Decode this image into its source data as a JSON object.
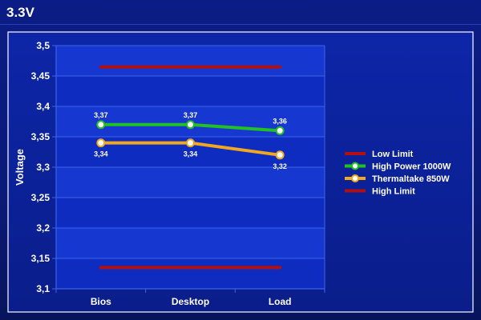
{
  "header": {
    "title": "3.3V"
  },
  "chart_data": {
    "type": "line",
    "categories": [
      "Bios",
      "Desktop",
      "Load"
    ],
    "y_ticks": [
      "3,1",
      "3,15",
      "3,2",
      "3,25",
      "3,3",
      "3,35",
      "3,4",
      "3,45",
      "3,5"
    ],
    "ylim": [
      3.1,
      3.5
    ],
    "ylabel": "Voltage",
    "grid": true,
    "legend_position": "right",
    "series": [
      {
        "name": "Low Limit",
        "values": [
          3.135,
          3.135,
          3.135
        ],
        "color": "#b01010",
        "markers": false,
        "labels": null
      },
      {
        "name": "High Power 1000W",
        "values": [
          3.37,
          3.37,
          3.36
        ],
        "color": "#22c022",
        "markers": true,
        "labels": [
          "3,37",
          "3,37",
          "3,36"
        ],
        "label_pos": "above"
      },
      {
        "name": "Thermaltake 850W",
        "values": [
          3.34,
          3.34,
          3.32
        ],
        "color": "#f0a820",
        "markers": true,
        "labels": [
          "3,34",
          "3,34",
          "3,32"
        ],
        "label_pos": "below"
      },
      {
        "name": "High Limit",
        "values": [
          3.465,
          3.465,
          3.465
        ],
        "color": "#b01010",
        "markers": false,
        "labels": null
      }
    ]
  }
}
